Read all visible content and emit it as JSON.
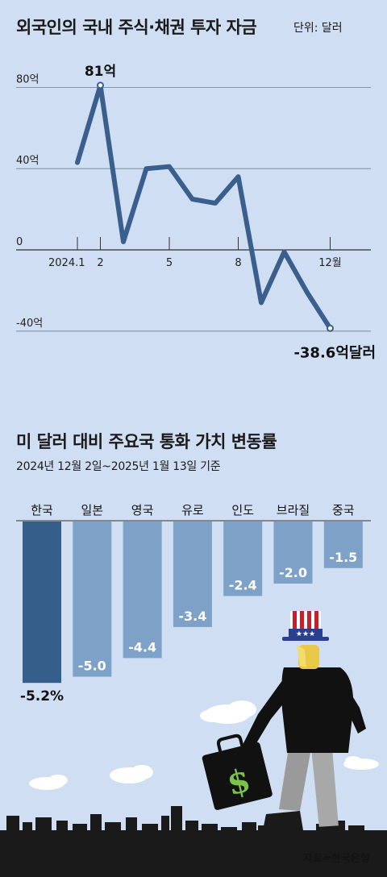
{
  "chart1": {
    "title": "외국인의 국내 주식·채권 투자 자금",
    "unit": "단위: 달러",
    "chart_data": {
      "type": "line",
      "y_ticks": [
        "80억",
        "40억",
        "0",
        "-40억"
      ],
      "y_tick_values": [
        80,
        40,
        0,
        -40
      ],
      "x_tick_labels": [
        "2024.1",
        "2",
        "5",
        "8",
        "12월"
      ],
      "x_tick_months": [
        1,
        2,
        5,
        8,
        12
      ],
      "x": [
        1,
        2,
        3,
        4,
        5,
        6,
        7,
        8,
        9,
        10,
        11,
        12
      ],
      "values": [
        43,
        81,
        4,
        40,
        41,
        25,
        23,
        36,
        -26,
        -1,
        -21,
        -38.6
      ],
      "ylim": [
        -40,
        80
      ],
      "annotations": {
        "max_label": "81억",
        "last_label": "-38.6억달러"
      },
      "grid": true,
      "line_color": "#3a5f8c"
    }
  },
  "chart2": {
    "title": "미 달러 대비 주요국 통화 가치 변동률",
    "subtitle": "2024년 12월 2일~2025년 1월 13일 기준",
    "chart_data": {
      "type": "bar",
      "categories": [
        "한국",
        "일본",
        "영국",
        "유로",
        "인도",
        "브라질",
        "중국"
      ],
      "values": [
        -5.2,
        -5.0,
        -4.4,
        -3.4,
        -2.4,
        -2.0,
        -1.5
      ],
      "value_labels": [
        "-5.2%",
        "-5.0",
        "-4.4",
        "-3.4",
        "-2.4",
        "-2.0",
        "-1.5"
      ],
      "colors": {
        "highlight": "#355e8a",
        "normal": "#7ea1c7"
      }
    }
  },
  "illustration": {
    "icon": "uncle-sam-with-dollar-briefcase-icon",
    "briefcase_symbol": "$"
  },
  "source": "자료=한국은행"
}
